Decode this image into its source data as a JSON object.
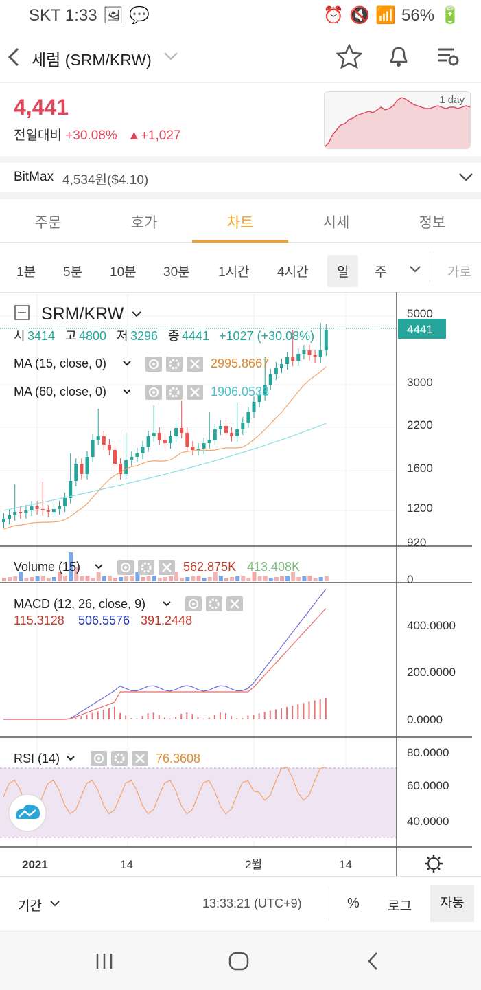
{
  "status": {
    "carrier_time": "SKT 1:33",
    "battery": "56%"
  },
  "header": {
    "title": "세럼 (SRM/KRW)"
  },
  "price": {
    "value": "4,441",
    "label": "전일대비",
    "change_pct": "+30.08%",
    "change_abs": "▲+1,027",
    "mini_chart_label": "1 day"
  },
  "exchange": {
    "name": "BitMax",
    "price": "4,534원($4.10)"
  },
  "tabs": [
    "주문",
    "호가",
    "차트",
    "시세",
    "정보"
  ],
  "intervals": [
    "1분",
    "5분",
    "10분",
    "30분",
    "1시간",
    "4시간",
    "일",
    "주"
  ],
  "intervals_extra": "가로",
  "chart": {
    "symbol": "SRM/KRW",
    "ohlc_labels": {
      "o_label": "시",
      "o": "3414",
      "h_label": "고",
      "h": "4800",
      "l_label": "저",
      "l": "3296",
      "c_label": "종",
      "c": "4441",
      "change": "+1027 (+30.08%)"
    },
    "last_price_tag": "4441",
    "price_axis": [
      "5000",
      "3000",
      "2200",
      "1600",
      "1200",
      "920"
    ],
    "ma15": {
      "label": "MA (15, close, 0)",
      "value": "2995.8667"
    },
    "ma60": {
      "label": "MA (60, close, 0)",
      "value": "1906.0533"
    },
    "volume": {
      "label": "Volume (15)",
      "v1": "562.875K",
      "v2": "413.408K",
      "axis": "0"
    },
    "macd": {
      "label": "MACD (12, 26, close, 9)",
      "v1": "115.3128",
      "v2": "506.5576",
      "v3": "391.2448",
      "axis": [
        "400.0000",
        "200.0000",
        "0.0000"
      ]
    },
    "rsi": {
      "label": "RSI (14)",
      "value": "76.3608",
      "axis": [
        "80.0000",
        "60.0000",
        "40.0000"
      ]
    },
    "time_axis": [
      "2021",
      "14",
      "2월",
      "14"
    ]
  },
  "bottom": {
    "period": "기간",
    "time": "13:33:21 (UTC+9)",
    "pct": "%",
    "log": "로그",
    "auto": "자동"
  },
  "colors": {
    "up": "#26a69a",
    "down": "#ef5350",
    "accent": "#f0a22b",
    "price_red": "#e04659"
  }
}
